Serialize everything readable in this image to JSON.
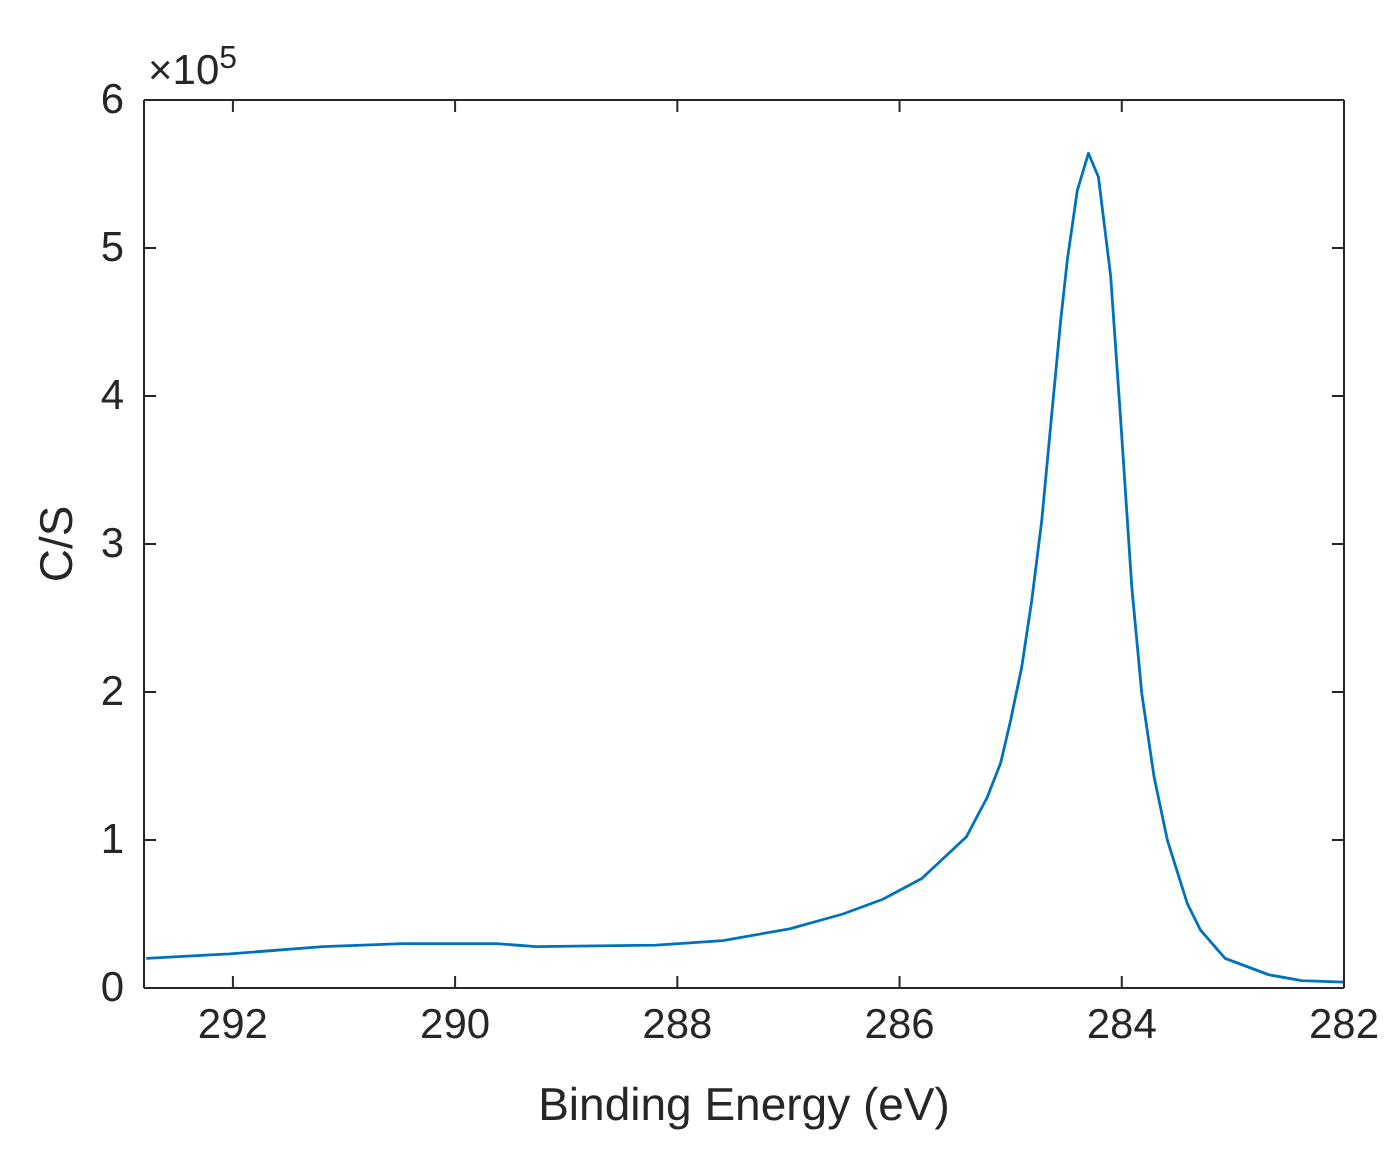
{
  "chart_data": {
    "type": "line",
    "xlabel": "Binding Energy (eV)",
    "ylabel": "C/S",
    "annotations": [
      "×10$^{5}$"
    ],
    "xlim": [
      292.8,
      282
    ],
    "xticks": [
      292,
      290,
      288,
      286,
      284,
      282
    ],
    "ylim": [
      0,
      6
    ],
    "yticks": [
      0,
      1,
      2,
      3,
      4,
      5,
      6
    ],
    "grid": false,
    "marker": "none",
    "line_style": "solid",
    "series": [
      {
        "color": "#0072bd",
        "x": [
          292.78,
          292.03,
          291.19,
          290.47,
          289.63,
          289.27,
          288.19,
          287.59,
          286.99,
          286.51,
          286.15,
          285.8,
          285.4,
          285.21,
          285.09,
          285.0,
          284.9,
          284.81,
          284.72,
          284.63,
          284.55,
          284.49,
          284.4,
          284.3,
          284.21,
          284.1,
          284.01,
          283.91,
          283.82,
          283.71,
          283.59,
          283.41,
          283.29,
          283.07,
          282.68,
          282.38,
          282.0
        ],
        "values": [
          0.2,
          0.23,
          0.28,
          0.3,
          0.3,
          0.28,
          0.29,
          0.32,
          0.4,
          0.5,
          0.6,
          0.74,
          1.02,
          1.29,
          1.52,
          1.81,
          2.17,
          2.62,
          3.16,
          3.88,
          4.51,
          4.92,
          5.39,
          5.64,
          5.48,
          4.81,
          3.84,
          2.71,
          1.99,
          1.43,
          1.0,
          0.57,
          0.39,
          0.2,
          0.09,
          0.05,
          0.04
        ]
      }
    ]
  }
}
